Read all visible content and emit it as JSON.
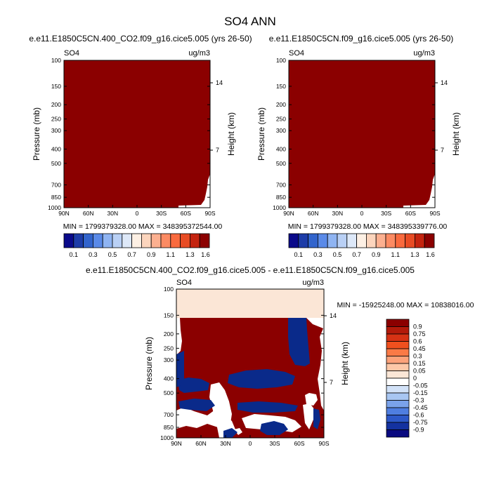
{
  "main_title": "SO4 ANN",
  "colors": {
    "dark_red": "#8b0000",
    "white": "#ffffff",
    "dark_blue": "#0a2a8a",
    "cream": "#fbe6d6"
  },
  "pressure_ticks": [
    "100",
    "150",
    "200",
    "250",
    "300",
    "400",
    "500",
    "700",
    "850",
    "1000"
  ],
  "lat_ticks": [
    "90N",
    "60N",
    "30N",
    "0",
    "30S",
    "60S",
    "90S"
  ],
  "chart_data": [
    {
      "type": "heatmap",
      "title": "e.e11.E1850C5CN.400_CO2.f09_g16.cice5.005 (yrs 26-50)",
      "left_label": "SO4",
      "right_label": "ug/m3",
      "xlabel": "",
      "ylabel": "Pressure (mb)",
      "y2label": "Height (km)",
      "height_ticks": [
        "14",
        "7"
      ],
      "stats": "MIN = 1799379328.00   MAX = 348395372544.00",
      "colorbar": {
        "orientation": "horizontal",
        "labels": [
          "0.1",
          "0.3",
          "0.5",
          "0.7",
          "0.9",
          "1.1",
          "1.3",
          "1.6"
        ],
        "colors": [
          "#0a0a8a",
          "#1d3ca8",
          "#3264cc",
          "#5a8ae8",
          "#8fb4f2",
          "#b9d0f5",
          "#dde8f8",
          "#fdf0e4",
          "#fcd5bd",
          "#fcb090",
          "#fc8b63",
          "#f96a3e",
          "#e84c24",
          "#c4240f",
          "#8b0000"
        ]
      },
      "field_description": "uniform maximum colour across domain; white notch near 90S at 850-1000 mb"
    },
    {
      "type": "heatmap",
      "title": "e.e11.E1850C5CN.f09_g16.cice5.005 (yrs 26-50)",
      "left_label": "SO4",
      "right_label": "ug/m3",
      "xlabel": "",
      "ylabel": "Pressure (mb)",
      "y2label": "Height (km)",
      "height_ticks": [
        "14",
        "7"
      ],
      "stats": "MIN = 1799379328.00   MAX = 348395339776.00",
      "colorbar": {
        "orientation": "horizontal",
        "labels": [
          "0.1",
          "0.3",
          "0.5",
          "0.7",
          "0.9",
          "1.1",
          "1.3",
          "1.6"
        ],
        "colors": [
          "#0a0a8a",
          "#1d3ca8",
          "#3264cc",
          "#5a8ae8",
          "#8fb4f2",
          "#b9d0f5",
          "#dde8f8",
          "#fdf0e4",
          "#fcd5bd",
          "#fcb090",
          "#fc8b63",
          "#f96a3e",
          "#e84c24",
          "#c4240f",
          "#8b0000"
        ]
      },
      "field_description": "uniform maximum colour across domain; white notch near 90S at 850-1000 mb"
    },
    {
      "type": "heatmap",
      "title": "e.e11.E1850C5CN.400_CO2.f09_g16.cice5.005 - e.e11.E1850C5CN.f09_g16.cice5.005",
      "left_label": "SO4",
      "right_label": "ug/m3",
      "xlabel": "",
      "ylabel": "Pressure (mb)",
      "y2label": "Height (km)",
      "height_ticks": [
        "14",
        "7"
      ],
      "stats": "MIN = -15925248.00   MAX = 10838016.00",
      "colorbar": {
        "orientation": "vertical",
        "labels": [
          "0.9",
          "0.75",
          "0.6",
          "0.45",
          "0.3",
          "0.15",
          "0.05",
          "0",
          "-0.05",
          "-0.15",
          "-0.3",
          "-0.45",
          "-0.6",
          "-0.75",
          "-0.9"
        ],
        "colors": [
          "#8b0000",
          "#b31a0a",
          "#d63214",
          "#f0501e",
          "#fa7a46",
          "#fca27a",
          "#fdc8a8",
          "#fbe6d6",
          "#ffffff",
          "#d2e2f8",
          "#a8c6f2",
          "#7aa2ea",
          "#4f7ee0",
          "#2d58c8",
          "#1432a0",
          "#0a0a80"
        ]
      },
      "field_description": "cream band 100-150 mb; below: dark red with blue bands near 400 mb, 550 mb, 640 mb and white patches near 700-1000 mb"
    }
  ]
}
